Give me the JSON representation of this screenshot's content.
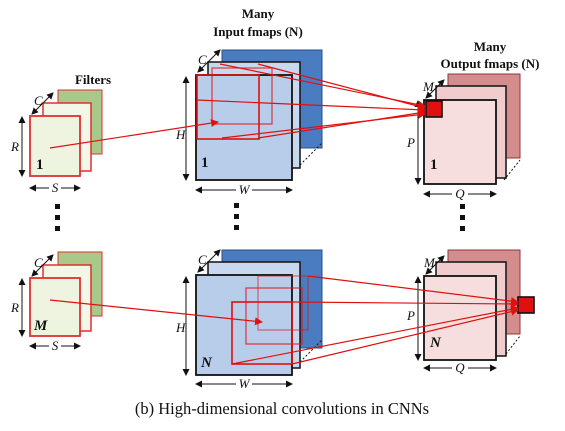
{
  "headings": {
    "filters": "Filters",
    "input_line1": "Many",
    "input_line2": "Input fmaps (N)",
    "output_line1": "Many",
    "output_line2": "Output fmaps (N)"
  },
  "labels": {
    "C": "C",
    "R": "R",
    "S": "S",
    "H": "H",
    "W": "W",
    "M": "M",
    "P": "P",
    "Q": "Q"
  },
  "indices": {
    "filter_first": "1",
    "filter_last": "M",
    "input_first": "1",
    "input_last": "N",
    "output_first": "1",
    "output_last": "N"
  },
  "caption": "(b) High-dimensional convolutions in CNNs",
  "colors": {
    "filter_fill": "#eef4df",
    "filter_back": "#a9c98a",
    "filter_stroke": "#e03030",
    "input_fill": "#b8cdea",
    "input_back": "#4a7cc2",
    "output_fill": "#f6dede",
    "output_back": "#d48c8c",
    "highlight": "#e01010",
    "arrow": "#e01010"
  }
}
